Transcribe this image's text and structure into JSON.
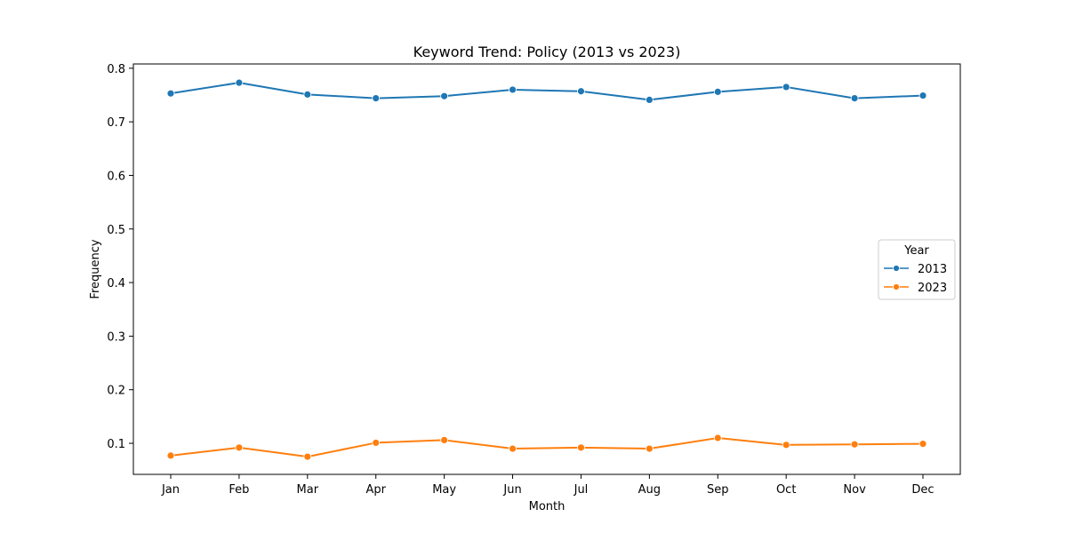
{
  "chart_data": {
    "type": "line",
    "title": "Keyword Trend: Policy (2013 vs 2023)",
    "xlabel": "Month",
    "ylabel": "Frequency",
    "categories": [
      "Jan",
      "Feb",
      "Mar",
      "Apr",
      "May",
      "Jun",
      "Jul",
      "Aug",
      "Sep",
      "Oct",
      "Nov",
      "Dec"
    ],
    "ylim": [
      0.042,
      0.808
    ],
    "yticks": [
      0.1,
      0.2,
      0.3,
      0.4,
      0.5,
      0.6,
      0.7,
      0.8
    ],
    "ytick_labels": [
      "0.1",
      "0.2",
      "0.3",
      "0.4",
      "0.5",
      "0.6",
      "0.7",
      "0.8"
    ],
    "grid": false,
    "legend": {
      "title": "Year",
      "position": "center-right"
    },
    "series": [
      {
        "name": "2013",
        "color": "#1f77b4",
        "marker": "circle",
        "values": [
          0.753,
          0.773,
          0.751,
          0.744,
          0.748,
          0.76,
          0.757,
          0.741,
          0.756,
          0.765,
          0.744,
          0.749
        ]
      },
      {
        "name": "2023",
        "color": "#ff7f0e",
        "marker": "circle",
        "values": [
          0.077,
          0.092,
          0.075,
          0.101,
          0.106,
          0.09,
          0.092,
          0.09,
          0.11,
          0.097,
          0.098,
          0.099
        ]
      }
    ]
  }
}
